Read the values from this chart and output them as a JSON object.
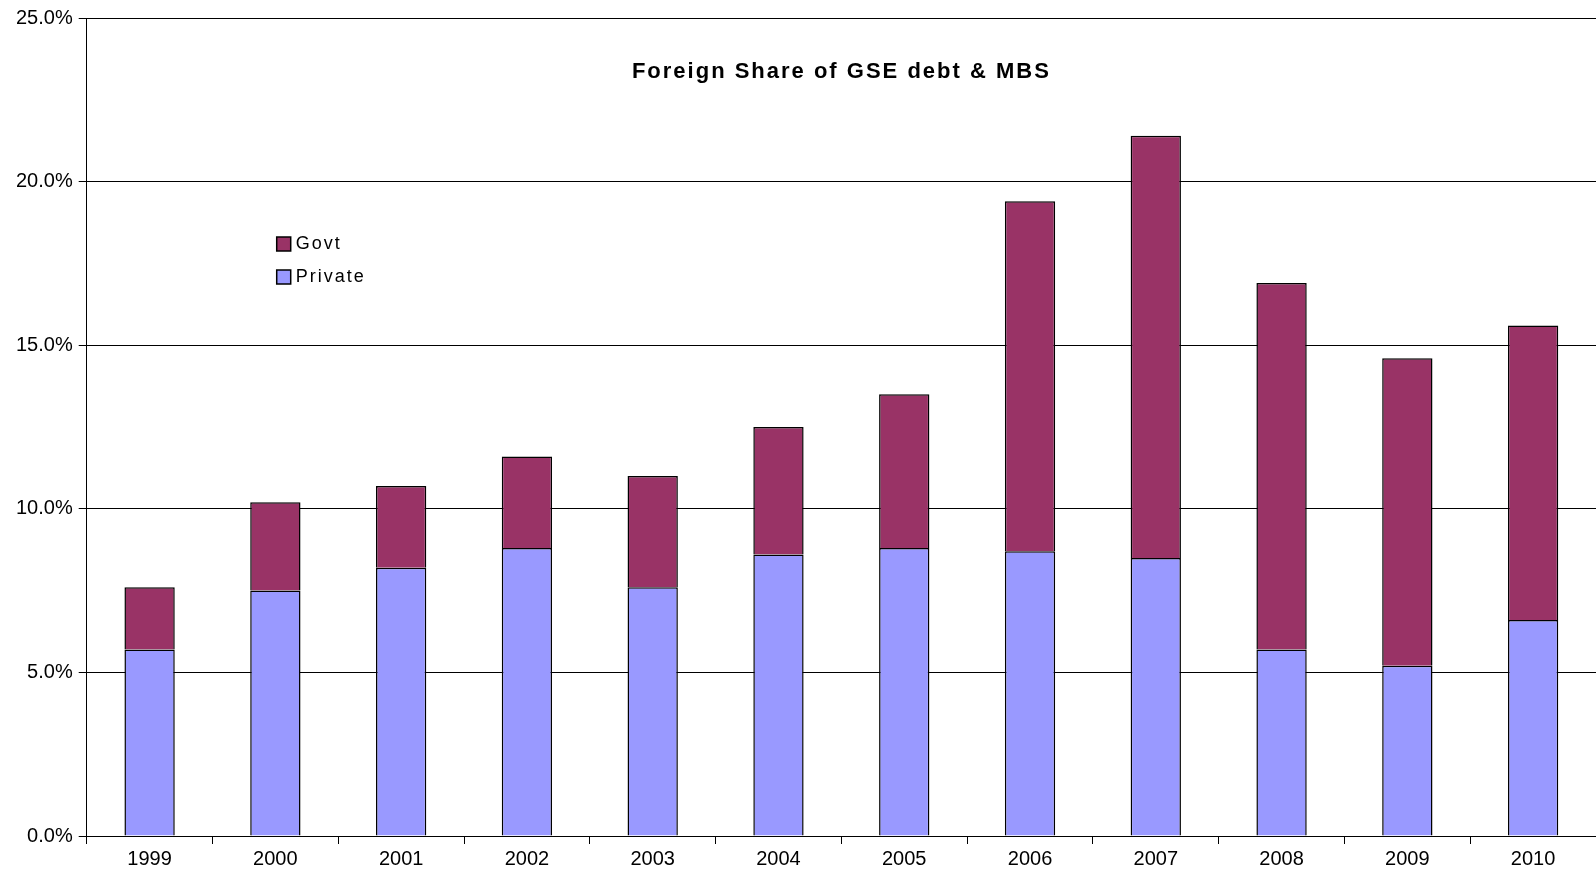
{
  "chart_data": {
    "type": "bar",
    "title": "Foreign Share of GSE debt & MBS",
    "stacked": true,
    "grid": "y",
    "legend": "top left",
    "categories": [
      "1999",
      "2000",
      "2001",
      "2002",
      "2003",
      "2004",
      "2005",
      "2006",
      "2007",
      "2008",
      "2009",
      "2010"
    ],
    "series": [
      {
        "name": "Private",
        "color": "#9999ff",
        "values": [
          5.7,
          7.5,
          8.2,
          8.8,
          7.6,
          8.6,
          8.8,
          8.7,
          8.5,
          5.7,
          5.2,
          6.6
        ]
      },
      {
        "name": "Govt",
        "color": "#993366",
        "values": [
          1.9,
          2.7,
          2.5,
          2.8,
          3.4,
          3.9,
          4.7,
          10.7,
          12.9,
          11.2,
          9.4,
          9.0
        ]
      }
    ],
    "ylim": [
      0,
      25
    ],
    "yticks": [
      {
        "value": 0,
        "label": "0.0%"
      },
      {
        "value": 5,
        "label": "5.0%"
      },
      {
        "value": 10,
        "label": "10.0%"
      },
      {
        "value": 15,
        "label": "15.0%"
      },
      {
        "value": 20,
        "label": "20.0%"
      },
      {
        "value": 25,
        "label": "25.0%"
      }
    ]
  }
}
